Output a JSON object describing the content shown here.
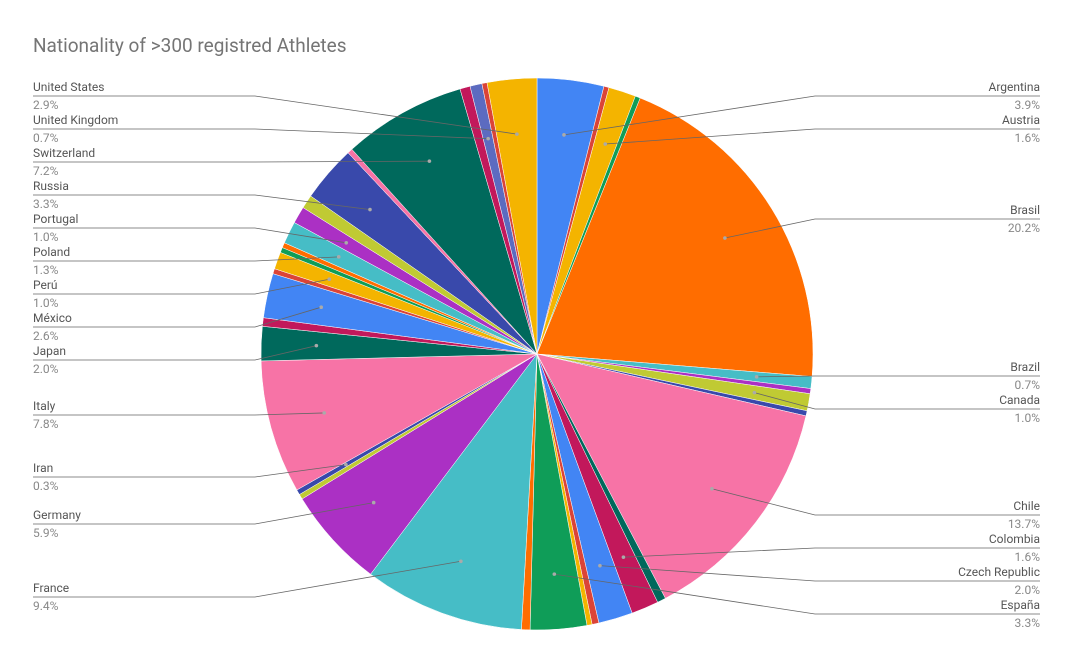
{
  "chart_data": {
    "type": "pie",
    "title": "Nationality of >300 registred Athletes",
    "categories": [
      "Argentina",
      null,
      "Austria",
      null,
      "Brasil",
      "Brazil",
      null,
      "Canada",
      null,
      "Chile",
      null,
      "Colombia",
      "Czech Republic",
      null,
      null,
      "España",
      null,
      "France",
      "Germany",
      null,
      "Iran",
      "Italy",
      "Japan",
      null,
      "México",
      null,
      "Perú",
      null,
      null,
      "Poland",
      "Portugal",
      null,
      "Russia",
      null,
      "Switzerland",
      null,
      "United Kingdom",
      null,
      "United States"
    ],
    "values": [
      3.9,
      0.3,
      1.6,
      0.3,
      20.2,
      0.7,
      0.3,
      1.0,
      0.3,
      13.7,
      0.5,
      1.6,
      2.0,
      0.4,
      0.3,
      3.3,
      0.5,
      9.4,
      5.9,
      0.3,
      0.3,
      7.8,
      2.0,
      0.5,
      2.6,
      0.3,
      1.0,
      0.3,
      0.3,
      1.3,
      1.0,
      0.8,
      3.3,
      0.3,
      7.2,
      0.6,
      0.7,
      0.3,
      2.9
    ],
    "value_labels": [
      "3.9%",
      null,
      "1.6%",
      null,
      "20.2%",
      "0.7%",
      null,
      "1.0%",
      null,
      "13.7%",
      null,
      "1.6%",
      "2.0%",
      null,
      null,
      "3.3%",
      null,
      "9.4%",
      "5.9%",
      null,
      "0.3%",
      "7.8%",
      "2.0%",
      null,
      "2.6%",
      null,
      "1.0%",
      null,
      null,
      "1.3%",
      "1.0%",
      null,
      "3.3%",
      null,
      "7.2%",
      null,
      "0.7%",
      null,
      "2.9%"
    ],
    "colors": [
      "#4285f4",
      "#db4437",
      "#f4b400",
      "#0f9d58",
      "#ff6d00",
      "#46bdc6",
      "#ab30c4",
      "#c0ca33",
      "#3949ab",
      "#f773a6",
      "#00695c",
      "#c2185b",
      "#4285f4",
      "#db4437",
      "#f4b400",
      "#0f9d58",
      "#ff6d00",
      "#46bdc6",
      "#ab30c4",
      "#c0ca33",
      "#3949ab",
      "#f773a6",
      "#00695c",
      "#c2185b",
      "#4285f4",
      "#db4437",
      "#f4b400",
      "#0f9d58",
      "#ff6d00",
      "#46bdc6",
      "#ab30c4",
      "#c0ca33",
      "#3949ab",
      "#f773a6",
      "#00695c",
      "#c2185b",
      "#5c6bc0",
      "#db4437",
      "#f4b400"
    ]
  }
}
